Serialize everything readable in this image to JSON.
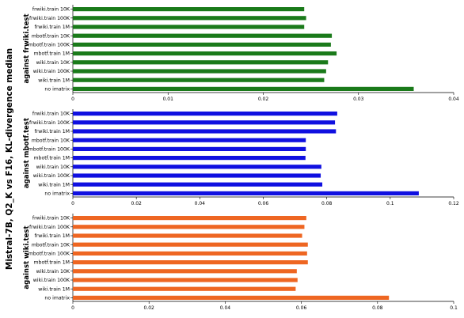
{
  "chart_data": {
    "type": "bar",
    "orientation": "horizontal",
    "title": "Mistral-7B, Q2_K vs F16, KL-divergence median",
    "grid": false,
    "categories": [
      "frwiki.train 10K",
      "frwiki.train 100K",
      "frwiki.train 1M",
      "mbotf.train 10K",
      "mbotf.train 100K",
      "mbotf.train 1M",
      "wiki.train 10K",
      "wiki.train 100K",
      "wiki.train 1M",
      "no imatrix"
    ],
    "panels": [
      {
        "label": "against frwiki.test",
        "color": "#1a7a1a",
        "xlim": [
          0,
          0.04
        ],
        "ticks": [
          "0",
          "0.01",
          "0.02",
          "0.03",
          "0.04"
        ],
        "tick_values": [
          0,
          0.01,
          0.02,
          0.03,
          0.04
        ],
        "values": [
          0.0243,
          0.0245,
          0.0243,
          0.0272,
          0.0271,
          0.0277,
          0.0268,
          0.0266,
          0.0264,
          0.0358
        ]
      },
      {
        "label": "against mbotf.test",
        "color": "#1010e0",
        "xlim": [
          0,
          0.12
        ],
        "ticks": [
          "0",
          "0.02",
          "0.04",
          "0.06",
          "0.08",
          "0.1",
          "0.12"
        ],
        "tick_values": [
          0,
          0.02,
          0.04,
          0.06,
          0.08,
          0.1,
          0.12
        ],
        "values": [
          0.0833,
          0.0826,
          0.0829,
          0.0734,
          0.0734,
          0.0733,
          0.0783,
          0.0781,
          0.0786,
          0.109
        ]
      },
      {
        "label": "against wiki.test",
        "color": "#ee6622",
        "xlim": [
          0,
          0.1
        ],
        "ticks": [
          "0",
          "0.02",
          "0.04",
          "0.06",
          "0.08",
          "0.1"
        ],
        "tick_values": [
          0,
          0.02,
          0.04,
          0.06,
          0.08,
          0.1
        ],
        "values": [
          0.0613,
          0.0608,
          0.0602,
          0.0617,
          0.0615,
          0.0617,
          0.0588,
          0.059,
          0.0585,
          0.083
        ]
      }
    ]
  }
}
